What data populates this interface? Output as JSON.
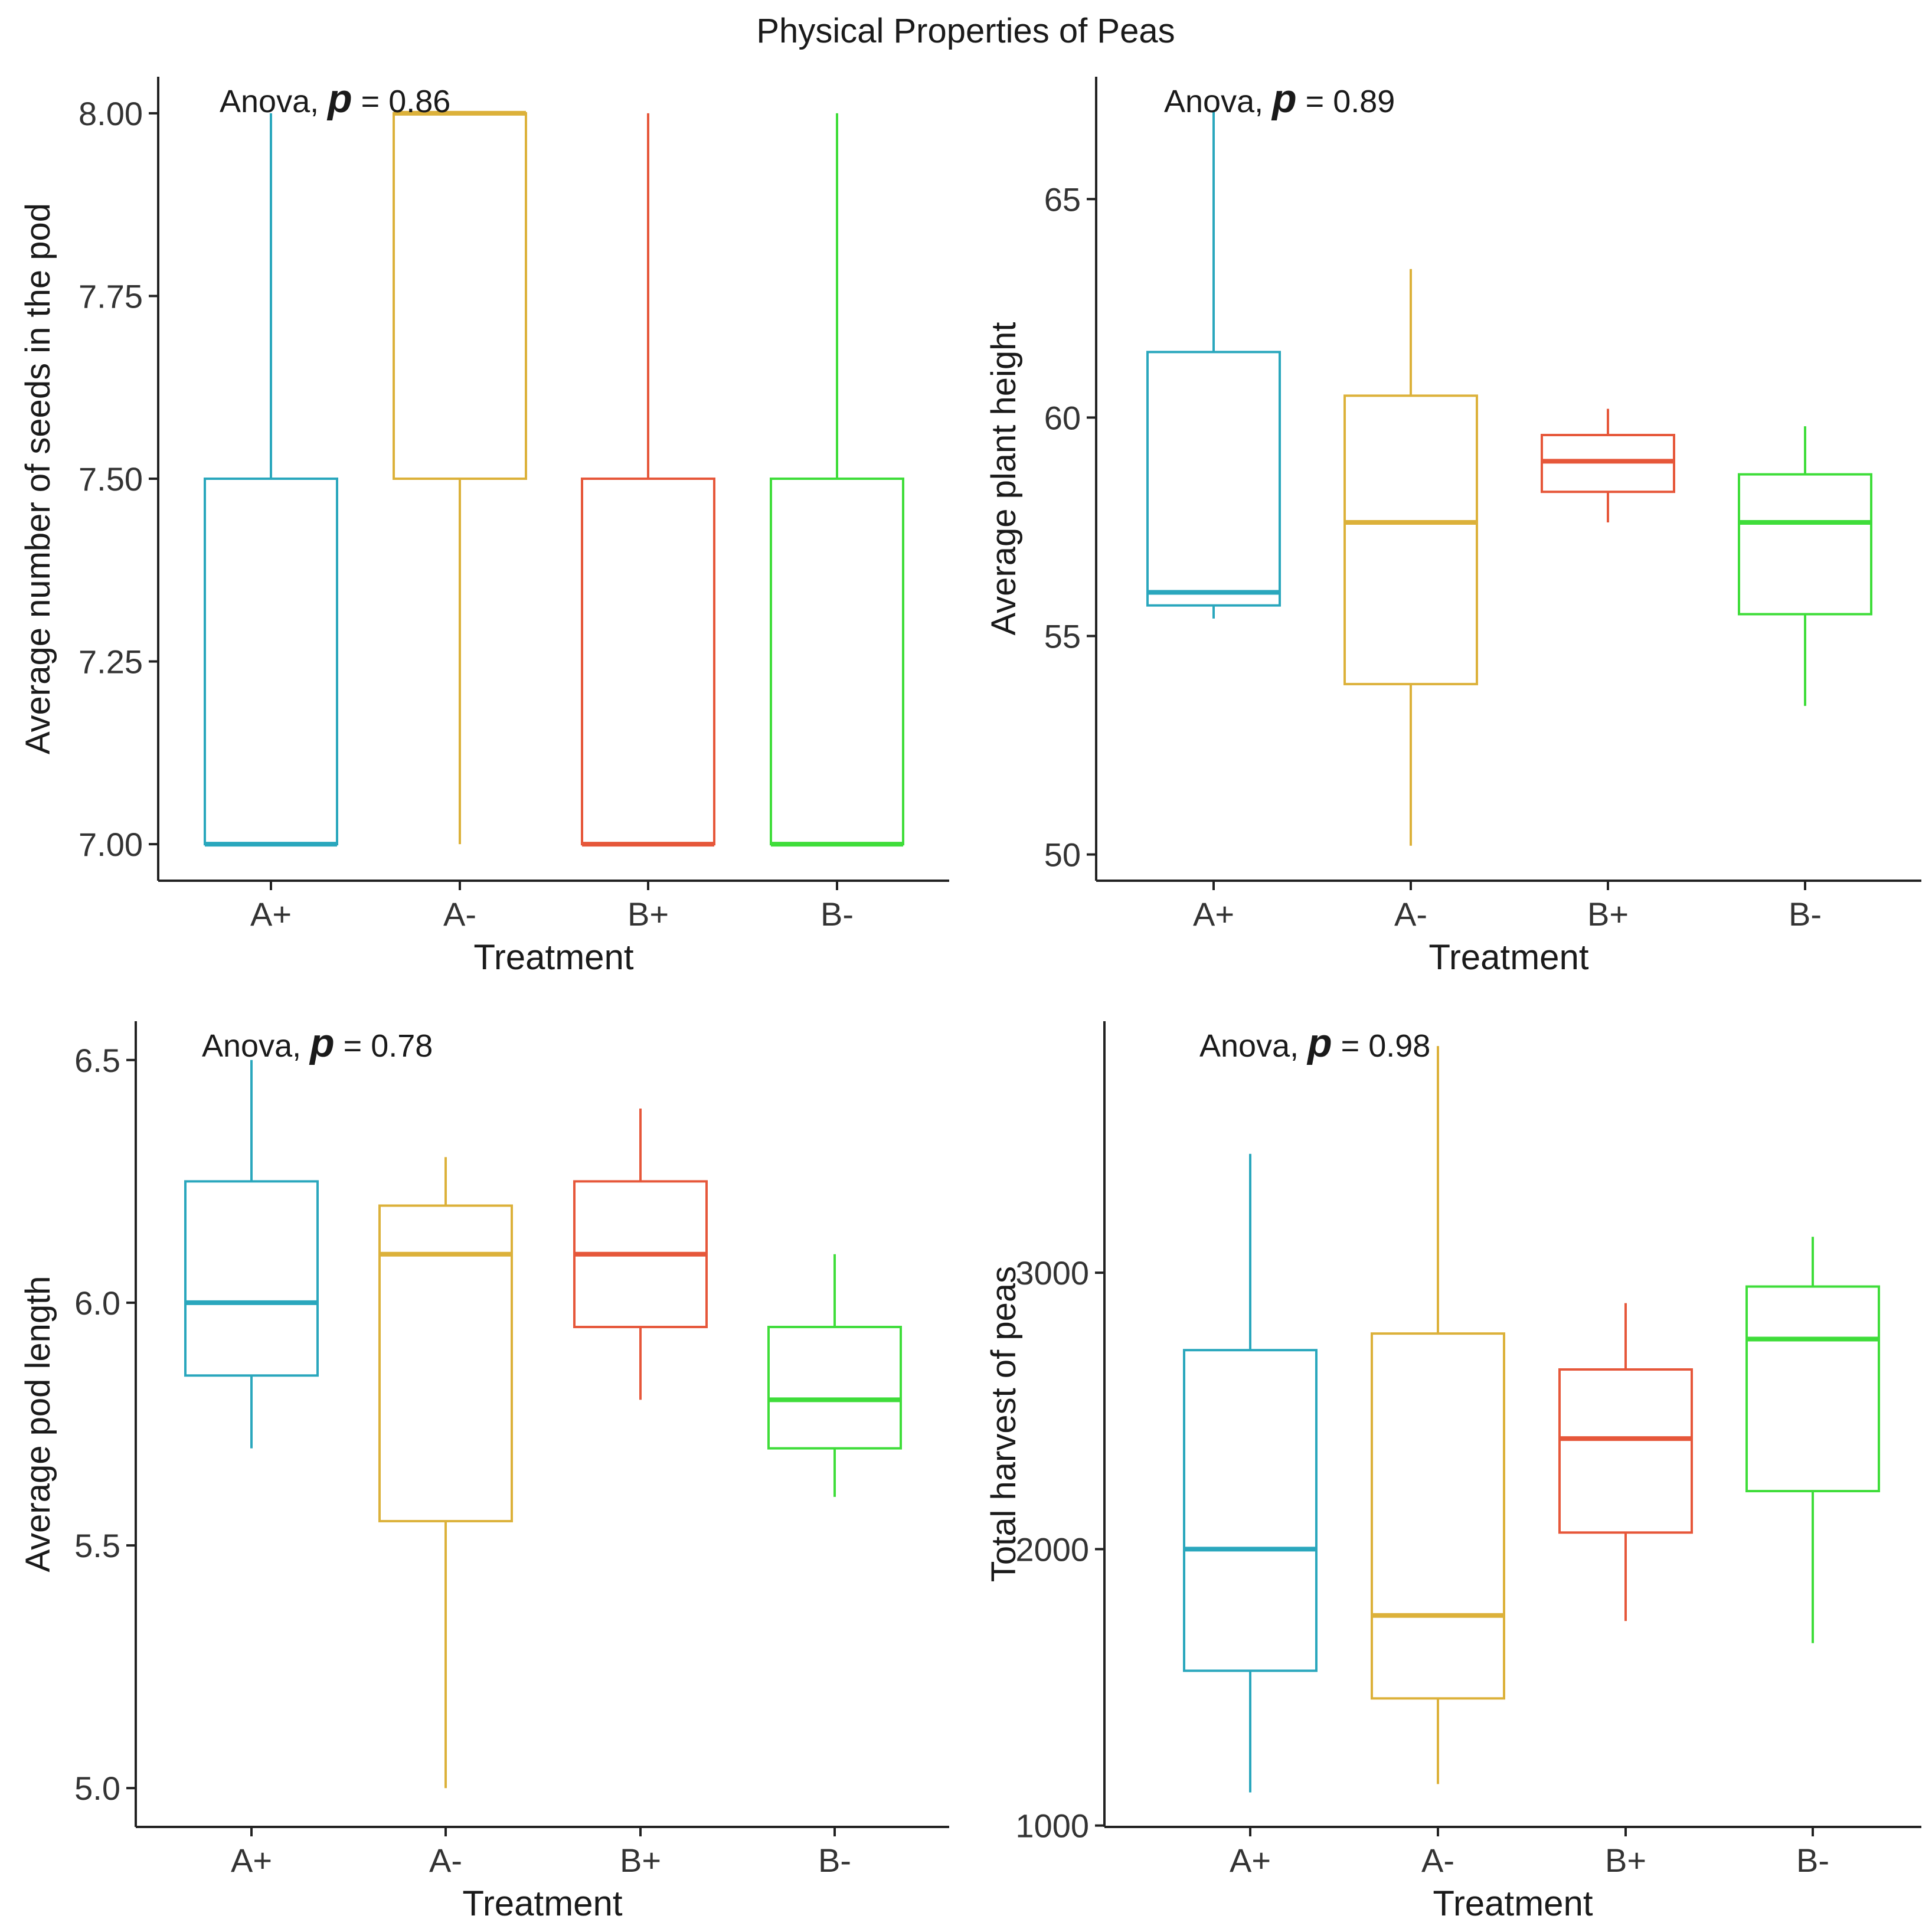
{
  "chart_data": {
    "title": "Physical Properties of Peas",
    "type": "boxplot",
    "legend": "none",
    "grid": false,
    "panels": [
      {
        "id": "seeds",
        "annotation": {
          "prefix": "Anova,",
          "p_symbol": "p",
          "p_text": "= 0.86"
        },
        "xlabel": "Treatment",
        "ylabel": "Average number of seeds in the pod",
        "categories": [
          "A+",
          "A-",
          "B+",
          "B-"
        ],
        "ylim": [
          6.95,
          8.05
        ],
        "yticks": [
          7.0,
          7.25,
          7.5,
          7.75,
          8.0
        ],
        "ytick_labels": [
          "7.00",
          "7.25",
          "7.50",
          "7.75",
          "8.00"
        ],
        "boxes": [
          {
            "group": "A+",
            "min": 7.0,
            "q1": 7.0,
            "median": 7.0,
            "q3": 7.5,
            "max": 8.0
          },
          {
            "group": "A-",
            "min": 7.0,
            "q1": 7.5,
            "median": 8.0,
            "q3": 8.0,
            "max": 8.0
          },
          {
            "group": "B+",
            "min": 7.0,
            "q1": 7.0,
            "median": 7.0,
            "q3": 7.5,
            "max": 8.0
          },
          {
            "group": "B-",
            "min": 7.0,
            "q1": 7.0,
            "median": 7.0,
            "q3": 7.5,
            "max": 8.0
          }
        ]
      },
      {
        "id": "height",
        "annotation": {
          "prefix": "Anova,",
          "p_symbol": "p",
          "p_text": "= 0.89"
        },
        "xlabel": "Treatment",
        "ylabel": "Average plant height",
        "categories": [
          "A+",
          "A-",
          "B+",
          "B-"
        ],
        "ylim": [
          49.4,
          67.8
        ],
        "yticks": [
          50,
          55,
          60,
          65
        ],
        "ytick_labels": [
          "50",
          "55",
          "60",
          "65"
        ],
        "boxes": [
          {
            "group": "A+",
            "min": 55.4,
            "q1": 55.7,
            "median": 56.0,
            "q3": 61.5,
            "max": 67.0
          },
          {
            "group": "A-",
            "min": 50.2,
            "q1": 53.9,
            "median": 57.6,
            "q3": 60.5,
            "max": 63.4
          },
          {
            "group": "B+",
            "min": 57.6,
            "q1": 58.3,
            "median": 59.0,
            "q3": 59.6,
            "max": 60.2
          },
          {
            "group": "B-",
            "min": 53.4,
            "q1": 55.5,
            "median": 57.6,
            "q3": 58.7,
            "max": 59.8
          }
        ]
      },
      {
        "id": "podlength",
        "annotation": {
          "prefix": "Anova,",
          "p_symbol": "p",
          "p_text": "= 0.78"
        },
        "xlabel": "Treatment",
        "ylabel": "Average pod length",
        "categories": [
          "A+",
          "A-",
          "B+",
          "B-"
        ],
        "ylim": [
          4.92,
          6.58
        ],
        "yticks": [
          5.0,
          5.5,
          6.0,
          6.5
        ],
        "ytick_labels": [
          "5.0",
          "5.5",
          "6.0",
          "6.5"
        ],
        "boxes": [
          {
            "group": "A+",
            "min": 5.7,
            "q1": 5.85,
            "median": 6.0,
            "q3": 6.25,
            "max": 6.5
          },
          {
            "group": "A-",
            "min": 5.0,
            "q1": 5.55,
            "median": 6.1,
            "q3": 6.2,
            "max": 6.3
          },
          {
            "group": "B+",
            "min": 5.8,
            "q1": 5.95,
            "median": 6.1,
            "q3": 6.25,
            "max": 6.4
          },
          {
            "group": "B-",
            "min": 5.6,
            "q1": 5.7,
            "median": 5.8,
            "q3": 5.95,
            "max": 6.1
          }
        ]
      },
      {
        "id": "harvest",
        "annotation": {
          "prefix": "Anova,",
          "p_symbol": "p",
          "p_text": "= 0.98"
        },
        "xlabel": "Treatment",
        "ylabel": "Total harvest of peas",
        "categories": [
          "A+",
          "A-",
          "B+",
          "B-"
        ],
        "ylim": [
          995,
          3910
        ],
        "yticks": [
          1000,
          2000,
          3000
        ],
        "ytick_labels": [
          "1000",
          "2000",
          "3000"
        ],
        "boxes": [
          {
            "group": "A+",
            "min": 1120,
            "q1": 1560,
            "median": 2000,
            "q3": 2720,
            "max": 3430
          },
          {
            "group": "A-",
            "min": 1150,
            "q1": 1460,
            "median": 1760,
            "q3": 2780,
            "max": 3820
          },
          {
            "group": "B+",
            "min": 1740,
            "q1": 2060,
            "median": 2400,
            "q3": 2650,
            "max": 2890
          },
          {
            "group": "B-",
            "min": 1660,
            "q1": 2210,
            "median": 2760,
            "q3": 2950,
            "max": 3130
          }
        ]
      }
    ],
    "group_colors": {
      "A+": "#2aa7bd",
      "A-": "#dcb13a",
      "B+": "#e6573a",
      "B-": "#3fdd3a"
    },
    "axis_color": "#222222",
    "text_color": "#1a1a1a"
  }
}
